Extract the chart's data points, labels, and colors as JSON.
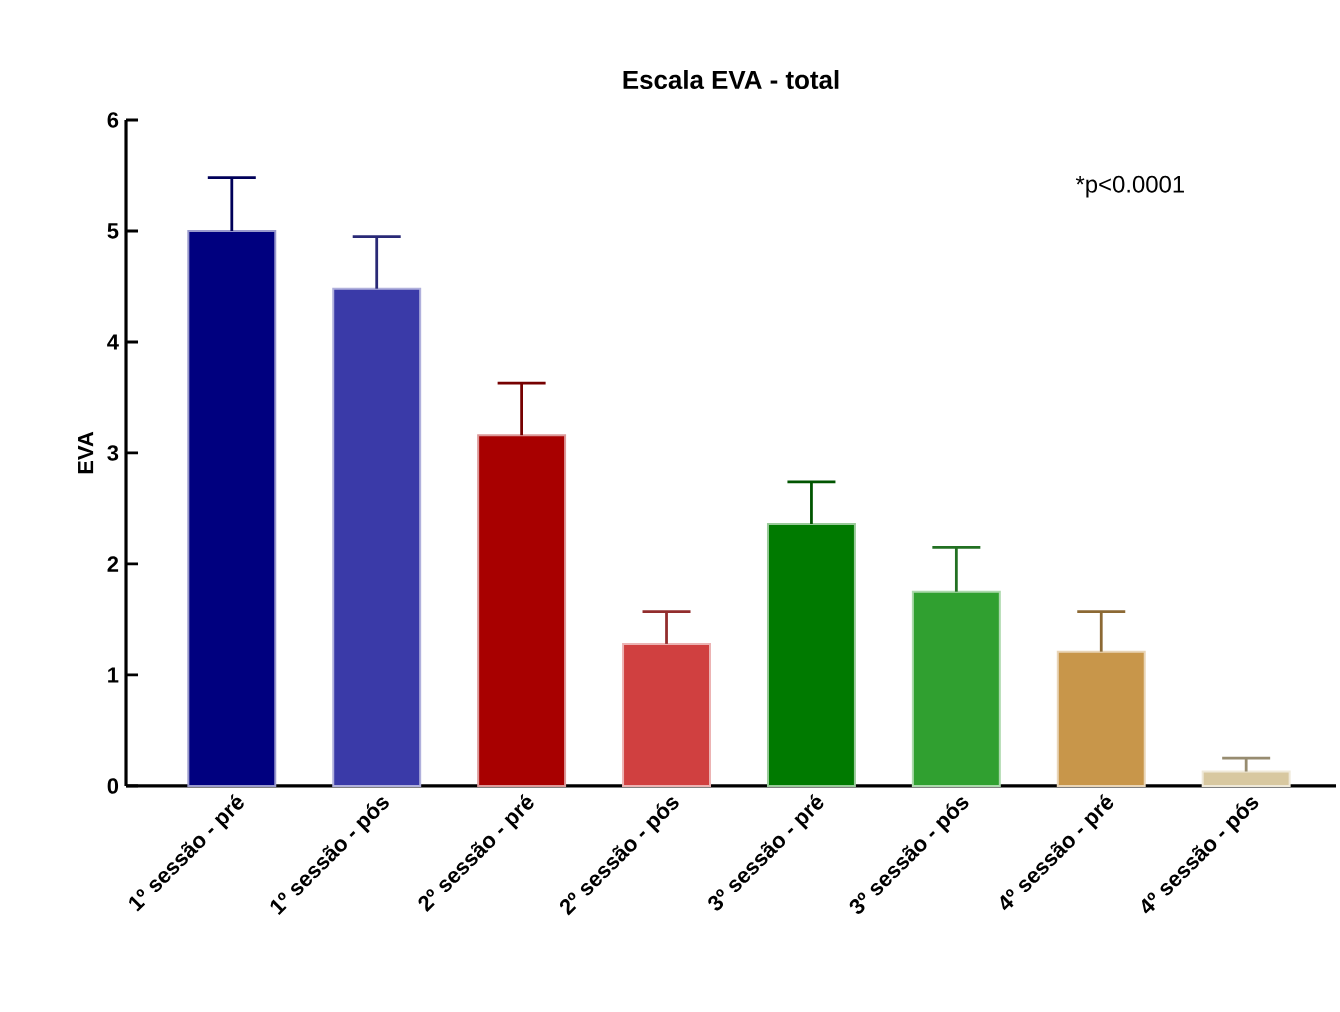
{
  "chart_data": {
    "type": "bar",
    "title": "Escala EVA - total",
    "ylabel": "EVA",
    "categories": [
      "1º sessão - pré",
      "1º sessão - pós",
      "2º sessão - pré",
      "2º sessão - pós",
      "3º sessão - pré",
      "3º sessão - pós",
      "4º sessão - pré",
      "4º sessão - pós"
    ],
    "values": [
      5.0,
      4.48,
      3.16,
      1.28,
      2.36,
      1.75,
      1.21,
      0.13
    ],
    "errors": [
      [
        5.0,
        5.48
      ],
      [
        4.48,
        4.95
      ],
      [
        3.16,
        3.63
      ],
      [
        1.28,
        1.57
      ],
      [
        2.36,
        2.74
      ],
      [
        1.75,
        2.15
      ],
      [
        1.21,
        1.57
      ],
      [
        0.13,
        0.25
      ]
    ],
    "colors": [
      "#00007f",
      "#3a3aa8",
      "#a80000",
      "#d04040",
      "#007a00",
      "#30a030",
      "#c8964a",
      "#d8c8a0"
    ],
    "ylim": [
      0,
      6
    ],
    "yticks": [
      0,
      1,
      2,
      3,
      4,
      5,
      6
    ],
    "grid": false,
    "annotations": [
      "*p<0.0001"
    ]
  }
}
